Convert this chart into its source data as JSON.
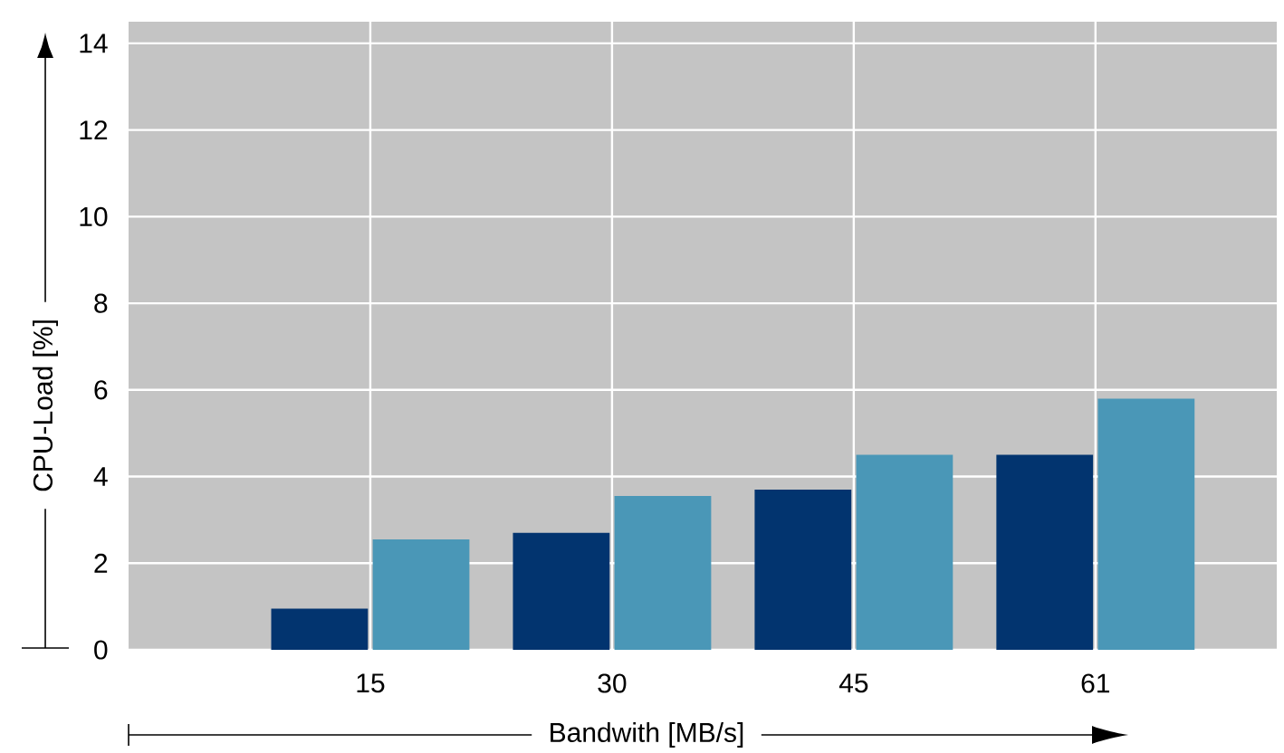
{
  "chart_data": {
    "type": "bar",
    "xlabel": "Bandwith [MB/s]",
    "ylabel": "CPU-Load [%]",
    "categories": [
      "15",
      "30",
      "45",
      "61"
    ],
    "series": [
      {
        "color": "#02346f",
        "values": [
          0.95,
          2.7,
          3.7,
          4.5
        ]
      },
      {
        "color": "#4a97b7",
        "values": [
          2.55,
          3.55,
          4.5,
          5.8
        ]
      }
    ],
    "ylim": [
      0,
      14.5
    ],
    "yticks": [
      0,
      2,
      4,
      6,
      8,
      10,
      12,
      14
    ],
    "grid": true
  }
}
